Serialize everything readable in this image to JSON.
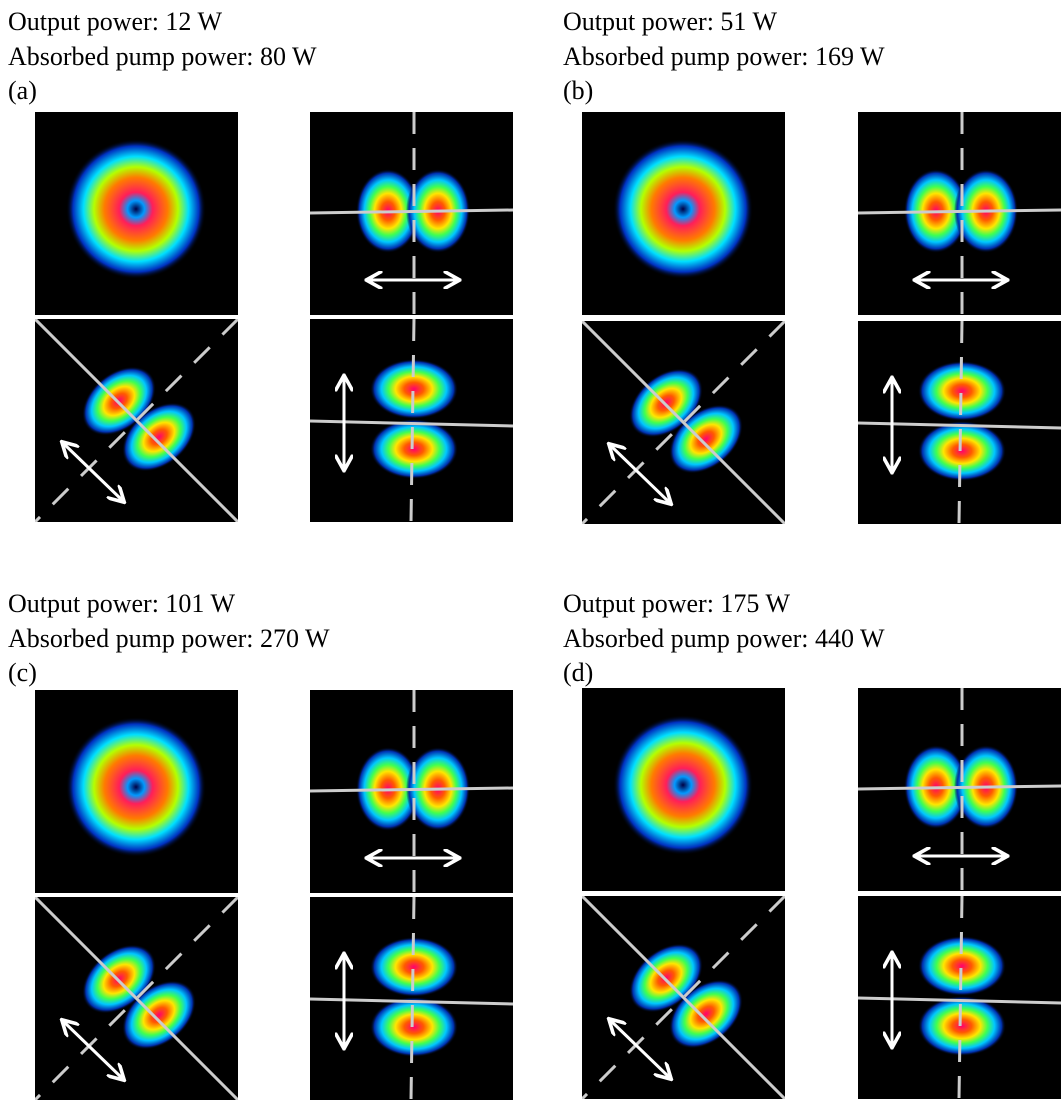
{
  "panels": [
    {
      "output_power": "Output power: 12 W",
      "absorbed_pump_power": "Absorbed pump power: 80 W",
      "label": "(a)"
    },
    {
      "output_power": "Output power: 51 W",
      "absorbed_pump_power": "Absorbed pump power: 169 W",
      "label": "(b)"
    },
    {
      "output_power": "Output power: 101 W",
      "absorbed_pump_power": "Absorbed pump power: 270 W",
      "label": "(c)"
    },
    {
      "output_power": "Output power: 175 W",
      "absorbed_pump_power": "Absorbed pump power: 440 W",
      "label": "(d)"
    }
  ]
}
